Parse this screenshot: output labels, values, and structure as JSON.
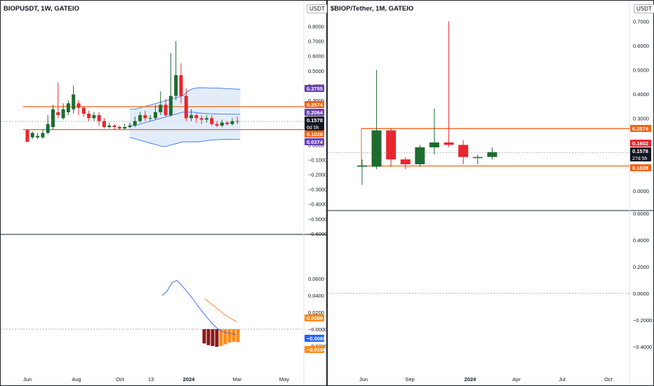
{
  "left_panel": {
    "title": "BIOPUSDT, 1W, GATEIO",
    "currency": "USDT"
  },
  "right_panel": {
    "title": "$BIOP/Tether, 1M, GATEIO",
    "currency": "USDT"
  },
  "colors": {
    "up": "#1e6b2f",
    "down": "#e8262d",
    "level_line": "#f06414",
    "bb_line": "#2962ff",
    "bb_fill": "#dbe8f8",
    "osc_line": "#2962ff",
    "signal_line": "#ff7a20",
    "hist_dark": "#8b1a1a",
    "hist_light": "#ff8a1a"
  },
  "chart_data": [
    {
      "type": "candlestick",
      "title": "BIOPUSDT, 1W, GATEIO",
      "y_ticks": [
        "0.8000",
        "0.7000",
        "0.6000",
        "0.5000",
        "0.4000",
        "0.3000",
        "0.2000",
        "0.1000",
        "0.0000",
        "−0.1000",
        "−0.2000",
        "−0.3000",
        "−0.4000",
        "−0.5000",
        "−0.6000"
      ],
      "x_ticks": [
        "Jun",
        "Aug",
        "Oct",
        "13",
        "2024",
        "Mar",
        "May"
      ],
      "levels": [
        0.2574,
        0.1028
      ],
      "price_labels": [
        {
          "text": "0.3755",
          "color": "#6a3fb5"
        },
        {
          "text": "0.2574",
          "color": "#f06414"
        },
        {
          "text": "0.2064",
          "color": "#6a3fb5"
        },
        {
          "text": "0.1578",
          "color": "#131722",
          "sub": "6d 5h"
        },
        {
          "text": "0.1028",
          "color": "#f06414"
        },
        {
          "text": "0.0374",
          "color": "#6a3fb5"
        }
      ],
      "candles": [
        [
          0.1,
          0.02,
          0.1,
          0.02
        ],
        [
          0.05,
          0.08,
          0.09,
          0.04
        ],
        [
          0.05,
          0.06,
          0.08,
          0.04
        ],
        [
          0.05,
          0.08,
          0.1,
          0.04
        ],
        [
          0.08,
          0.14,
          0.2,
          0.07
        ],
        [
          0.12,
          0.24,
          0.27,
          0.1
        ],
        [
          0.22,
          0.2,
          0.42,
          0.18
        ],
        [
          0.18,
          0.24,
          0.28,
          0.17
        ],
        [
          0.22,
          0.28,
          0.3,
          0.2
        ],
        [
          0.24,
          0.34,
          0.4,
          0.21
        ],
        [
          0.28,
          0.25,
          0.3,
          0.2
        ],
        [
          0.25,
          0.21,
          0.26,
          0.19
        ],
        [
          0.21,
          0.18,
          0.23,
          0.16
        ],
        [
          0.18,
          0.2,
          0.22,
          0.16
        ],
        [
          0.2,
          0.16,
          0.22,
          0.13
        ],
        [
          0.16,
          0.12,
          0.18,
          0.11
        ],
        [
          0.12,
          0.13,
          0.15,
          0.11
        ],
        [
          0.13,
          0.12,
          0.14,
          0.1
        ],
        [
          0.12,
          0.11,
          0.13,
          0.1
        ],
        [
          0.11,
          0.12,
          0.14,
          0.1
        ],
        [
          0.12,
          0.13,
          0.15,
          0.11
        ],
        [
          0.13,
          0.16,
          0.19,
          0.12
        ],
        [
          0.16,
          0.2,
          0.22,
          0.15
        ],
        [
          0.2,
          0.18,
          0.23,
          0.16
        ],
        [
          0.18,
          0.18,
          0.2,
          0.16
        ],
        [
          0.18,
          0.22,
          0.27,
          0.17
        ],
        [
          0.22,
          0.27,
          0.36,
          0.2
        ],
        [
          0.27,
          0.2,
          0.31,
          0.19
        ],
        [
          0.2,
          0.33,
          0.62,
          0.19
        ],
        [
          0.33,
          0.47,
          0.7,
          0.3
        ],
        [
          0.47,
          0.33,
          0.55,
          0.28
        ],
        [
          0.33,
          0.18,
          0.38,
          0.16
        ],
        [
          0.18,
          0.2,
          0.24,
          0.16
        ],
        [
          0.2,
          0.18,
          0.21,
          0.15
        ],
        [
          0.18,
          0.17,
          0.2,
          0.14
        ],
        [
          0.17,
          0.18,
          0.2,
          0.15
        ],
        [
          0.18,
          0.14,
          0.2,
          0.13
        ],
        [
          0.14,
          0.13,
          0.16,
          0.12
        ],
        [
          0.13,
          0.15,
          0.17,
          0.12
        ],
        [
          0.15,
          0.14,
          0.16,
          0.13
        ],
        [
          0.14,
          0.16,
          0.18,
          0.13
        ],
        [
          0.16,
          0.1578,
          0.19,
          0.14
        ]
      ],
      "bb_upper": [
        0.24,
        0.24,
        0.25,
        0.26,
        0.27,
        0.28,
        0.29,
        0.3,
        0.31,
        0.32,
        0.33,
        0.36,
        0.38,
        0.385,
        0.385,
        0.384,
        0.383,
        0.382,
        0.38,
        0.378,
        0.376,
        0.3755
      ],
      "bb_mid": [
        0.13,
        0.13,
        0.14,
        0.15,
        0.16,
        0.17,
        0.18,
        0.19,
        0.2,
        0.21,
        0.22,
        0.22,
        0.22,
        0.215,
        0.212,
        0.21,
        0.209,
        0.208,
        0.207,
        0.2064,
        0.2064,
        0.2064
      ],
      "bb_lower": [
        0.05,
        0.04,
        0.03,
        0.02,
        0.01,
        0.0,
        -0.01,
        -0.01,
        0.0,
        0.01,
        0.02,
        0.02,
        0.02,
        0.02,
        0.025,
        0.03,
        0.033,
        0.035,
        0.036,
        0.037,
        0.037,
        0.0374
      ],
      "oscillator": {
        "y_ticks": [
          "0.0600",
          "0.0400",
          "0.0200",
          "−0.0000",
          "−0.0200"
        ],
        "labels": [
          {
            "text": "0.0089",
            "color": "#ff8a1a"
          },
          {
            "text": "−0.0065",
            "color": "#2962ff"
          },
          {
            "text": "−0.0154",
            "color": "#ff8a1a"
          }
        ],
        "line": [
          0.04,
          0.045,
          0.055,
          0.058,
          0.052,
          0.045,
          0.038,
          0.03,
          0.022,
          0.015,
          0.008,
          0.002,
          -0.002,
          -0.004,
          -0.005,
          -0.0065
        ],
        "signal": [
          0.036,
          0.03,
          0.024,
          0.018,
          0.013,
          0.0089
        ],
        "histogram": [
          -0.017,
          -0.019,
          -0.02,
          -0.021,
          -0.02,
          -0.018,
          -0.016,
          -0.015,
          -0.0154
        ]
      }
    },
    {
      "type": "candlestick",
      "title": "$BIOP/Tether, 1M, GATEIO",
      "y_ticks": [
        "0.7000",
        "0.6000",
        "0.5000",
        "0.4000",
        "0.3000",
        "0.2000",
        "0.1000",
        "0.0000"
      ],
      "x_ticks": [
        "Jun",
        "Sep",
        "2024",
        "Apr",
        "Jul",
        "Oct"
      ],
      "levels": [
        0.2574,
        0.1028
      ],
      "price_labels": [
        {
          "text": "0.2574",
          "color": "#f06414"
        },
        {
          "text": "0.1602",
          "color": "#e8262d"
        },
        {
          "text": "0.1578",
          "color": "#131722",
          "sub": "27d 5h"
        },
        {
          "text": "0.1028",
          "color": "#f06414"
        }
      ],
      "candles": [
        [
          0.1,
          0.105,
          0.13,
          0.025
        ],
        [
          0.1,
          0.25,
          0.5,
          0.09
        ],
        [
          0.25,
          0.13,
          0.26,
          0.1
        ],
        [
          0.13,
          0.11,
          0.14,
          0.09
        ],
        [
          0.11,
          0.18,
          0.19,
          0.1
        ],
        [
          0.18,
          0.2,
          0.34,
          0.15
        ],
        [
          0.2,
          0.19,
          0.7,
          0.18
        ],
        [
          0.19,
          0.14,
          0.21,
          0.11
        ],
        [
          0.14,
          0.14,
          0.15,
          0.11
        ],
        [
          0.14,
          0.16,
          0.18,
          0.13
        ]
      ],
      "oscillator": {
        "y_ticks": [
          "0.6000",
          "0.4000",
          "0.2000",
          "0.0000",
          "−0.2000",
          "−0.4000"
        ]
      }
    }
  ]
}
